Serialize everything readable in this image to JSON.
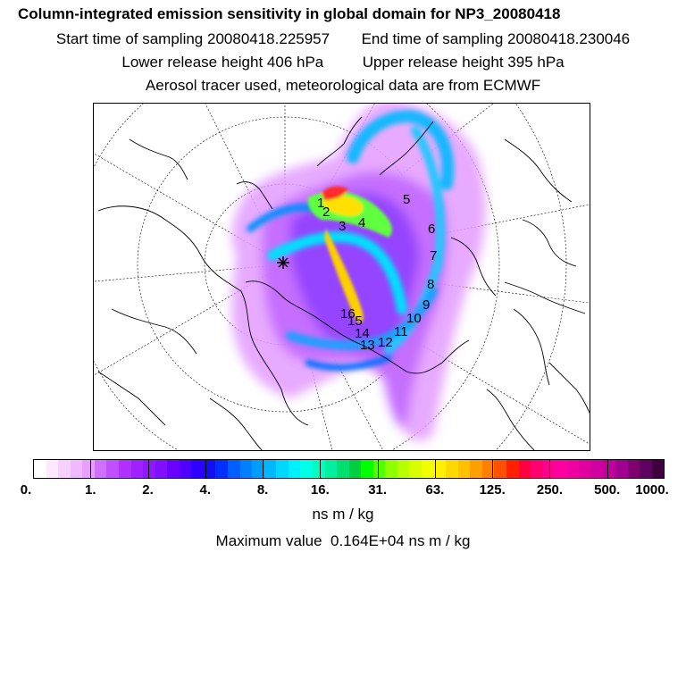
{
  "title": "Column-integrated emission sensitivity in global domain for NP3_20080418",
  "start_label": "Start time of sampling",
  "start_value": "20080418.225957",
  "end_label": "End time of sampling",
  "end_value": "20080418.230046",
  "lower_label": "Lower release height",
  "lower_value": "406 hPa",
  "upper_label": "Upper release height",
  "upper_value": "395 hPa",
  "tracer_note": "Aerosol tracer used, meteorological data are from ECMWF",
  "colorbar": {
    "ticks": [
      "0.",
      "1.",
      "2.",
      "4.",
      "8.",
      "16.",
      "31.",
      "63.",
      "125.",
      "250.",
      "500.",
      "1000."
    ],
    "colors": [
      "#ffffff",
      "#fde8ff",
      "#f7d0ff",
      "#f0b8ff",
      "#e8a0ff",
      "#d070ff",
      "#c050ff",
      "#b030ff",
      "#a020ff",
      "#9018ff",
      "#8010ff",
      "#6a00ff",
      "#5000ff",
      "#3000ff",
      "#1010f0",
      "#0030ff",
      "#0060ff",
      "#0080ff",
      "#009cff",
      "#00b8ff",
      "#00d8ff",
      "#00f0ff",
      "#00ffe8",
      "#00ffc0",
      "#00f0a0",
      "#00e070",
      "#00d040",
      "#00ff00",
      "#50ff00",
      "#90ff00",
      "#b8ff00",
      "#d8ff00",
      "#f0ff00",
      "#fff000",
      "#ffd800",
      "#ffc000",
      "#ffa000",
      "#ff8000",
      "#ff5000",
      "#ff2000",
      "#ff0040",
      "#ff0070",
      "#ff0090",
      "#ff00a0",
      "#f000a0",
      "#e000a0",
      "#d000a0",
      "#c0009a",
      "#a00090",
      "#800070",
      "#600060",
      "#400040"
    ]
  },
  "units": "ns m / kg",
  "max_label": "Maximum value",
  "max_value": "0.164E+04 ns m / kg",
  "trajectory_labels": [
    "1",
    "2",
    "3",
    "4",
    "5",
    "6",
    "7",
    "8",
    "9",
    "10",
    "11",
    "12",
    "13",
    "14",
    "15",
    "16"
  ]
}
